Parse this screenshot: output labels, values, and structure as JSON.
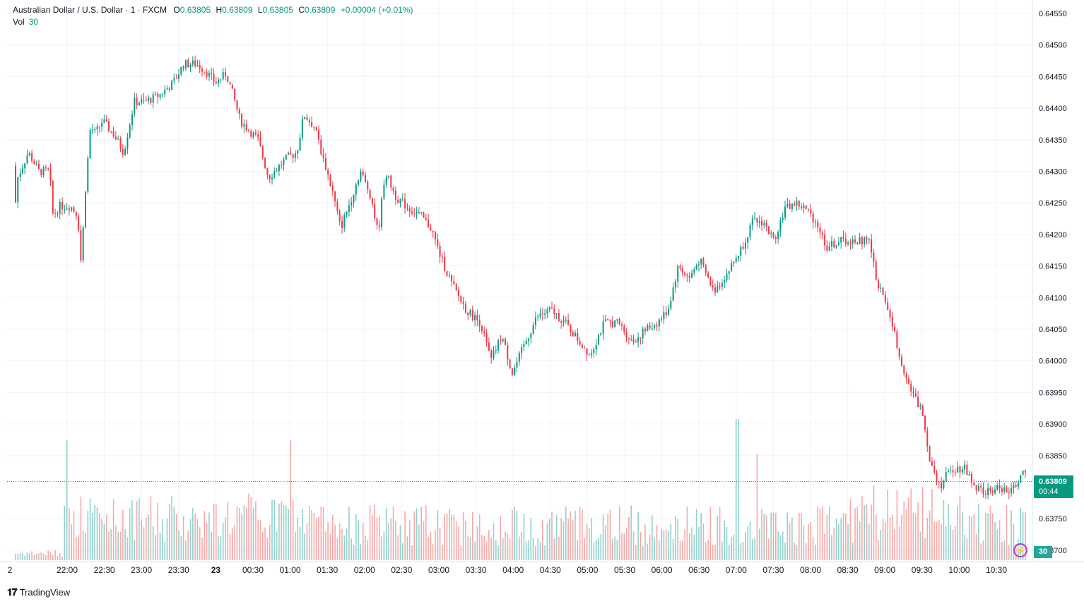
{
  "legend": {
    "symbol": "Australian Dollar / U.S. Dollar · 1 · FXCM",
    "open_label": "O",
    "open": "0.63805",
    "high_label": "H",
    "high": "0.63809",
    "low_label": "L",
    "low": "0.63805",
    "close_label": "C",
    "close": "0.63809",
    "change": "+0.00004 (+0.01%)",
    "vol_label": "Vol",
    "vol_value": "30"
  },
  "price_tag": {
    "price": "0.63809",
    "countdown": "00:44"
  },
  "vol_tag": "30",
  "brand": "TradingView",
  "colors": {
    "up": "#089981",
    "down": "#f23645",
    "up_vol": "#26a69a",
    "down_vol": "#ef5350",
    "grid": "#f0f3fa"
  },
  "chart_data": {
    "type": "candlestick",
    "y_axis_labels": [
      "0.64550",
      "0.64500",
      "0.64450",
      "0.64400",
      "0.64350",
      "0.64300",
      "0.64250",
      "0.64200",
      "0.64150",
      "0.64100",
      "0.64050",
      "0.64000",
      "0.63950",
      "0.63900",
      "0.63850",
      "0.63800",
      "0.63750",
      "0.63700"
    ],
    "y_range": [
      0.6369,
      0.64565
    ],
    "x_axis_labels": [
      "2",
      "22:00",
      "22:30",
      "23:00",
      "23:30",
      "23",
      "00:30",
      "01:00",
      "01:30",
      "02:00",
      "02:30",
      "03:00",
      "03:30",
      "04:00",
      "04:30",
      "05:00",
      "05:30",
      "06:00",
      "06:30",
      "07:00",
      "07:30",
      "08:00",
      "08:30",
      "09:00",
      "09:30",
      "10:00",
      "10:30"
    ],
    "x_axis_bold": [
      "23"
    ],
    "last_price": 0.63809,
    "interval": "1",
    "price_path": [
      [
        0,
        0.64225
      ],
      [
        5,
        0.6429
      ],
      [
        20,
        0.6433
      ],
      [
        35,
        0.643
      ],
      [
        50,
        0.643
      ],
      [
        55,
        0.6423
      ],
      [
        65,
        0.64245
      ],
      [
        80,
        0.64245
      ],
      [
        90,
        0.6423
      ],
      [
        95,
        0.6415
      ],
      [
        100,
        0.6426
      ],
      [
        108,
        0.6437
      ],
      [
        115,
        0.6436
      ],
      [
        125,
        0.6438
      ],
      [
        140,
        0.6436
      ],
      [
        155,
        0.6433
      ],
      [
        170,
        0.6441
      ],
      [
        185,
        0.6441
      ],
      [
        205,
        0.6442
      ],
      [
        225,
        0.6444
      ],
      [
        240,
        0.6447
      ],
      [
        258,
        0.6447
      ],
      [
        270,
        0.6446
      ],
      [
        285,
        0.6444
      ],
      [
        300,
        0.64455
      ],
      [
        310,
        0.6442
      ],
      [
        320,
        0.6438
      ],
      [
        345,
        0.6435
      ],
      [
        360,
        0.6429
      ],
      [
        385,
        0.6432
      ],
      [
        400,
        0.6433
      ],
      [
        410,
        0.6439
      ],
      [
        425,
        0.6437
      ],
      [
        440,
        0.6431
      ],
      [
        450,
        0.6427
      ],
      [
        462,
        0.6421
      ],
      [
        475,
        0.6425
      ],
      [
        490,
        0.643
      ],
      [
        505,
        0.6426
      ],
      [
        515,
        0.642
      ],
      [
        525,
        0.643
      ],
      [
        540,
        0.6426
      ],
      [
        560,
        0.6424
      ],
      [
        575,
        0.6423
      ],
      [
        590,
        0.6421
      ],
      [
        605,
        0.6416
      ],
      [
        620,
        0.6412
      ],
      [
        640,
        0.6408
      ],
      [
        660,
        0.6406
      ],
      [
        675,
        0.64
      ],
      [
        690,
        0.6404
      ],
      [
        705,
        0.6398
      ],
      [
        720,
        0.6402
      ],
      [
        740,
        0.6407
      ],
      [
        760,
        0.6408
      ],
      [
        780,
        0.6406
      ],
      [
        800,
        0.6403
      ],
      [
        815,
        0.6401
      ],
      [
        835,
        0.6406
      ],
      [
        855,
        0.6406
      ],
      [
        875,
        0.6403
      ],
      [
        895,
        0.6405
      ],
      [
        910,
        0.6406
      ],
      [
        925,
        0.6408
      ],
      [
        940,
        0.6415
      ],
      [
        955,
        0.6413
      ],
      [
        970,
        0.6416
      ],
      [
        990,
        0.6411
      ],
      [
        1010,
        0.6414
      ],
      [
        1030,
        0.6418
      ],
      [
        1045,
        0.6422
      ],
      [
        1060,
        0.6422
      ],
      [
        1075,
        0.6419
      ],
      [
        1090,
        0.6424
      ],
      [
        1105,
        0.6425
      ],
      [
        1120,
        0.6424
      ],
      [
        1135,
        0.6422
      ],
      [
        1150,
        0.6418
      ],
      [
        1170,
        0.6419
      ],
      [
        1190,
        0.6419
      ],
      [
        1210,
        0.6419
      ],
      [
        1220,
        0.6413
      ],
      [
        1240,
        0.6407
      ],
      [
        1255,
        0.64
      ],
      [
        1270,
        0.6395
      ],
      [
        1285,
        0.6392
      ],
      [
        1295,
        0.6385
      ],
      [
        1310,
        0.638
      ],
      [
        1325,
        0.6383
      ],
      [
        1345,
        0.6383
      ],
      [
        1360,
        0.638
      ],
      [
        1375,
        0.6379
      ],
      [
        1395,
        0.638
      ],
      [
        1410,
        0.6379
      ],
      [
        1425,
        0.6382
      ],
      [
        1435,
        0.63815
      ],
      [
        1443,
        0.63809
      ]
    ]
  }
}
